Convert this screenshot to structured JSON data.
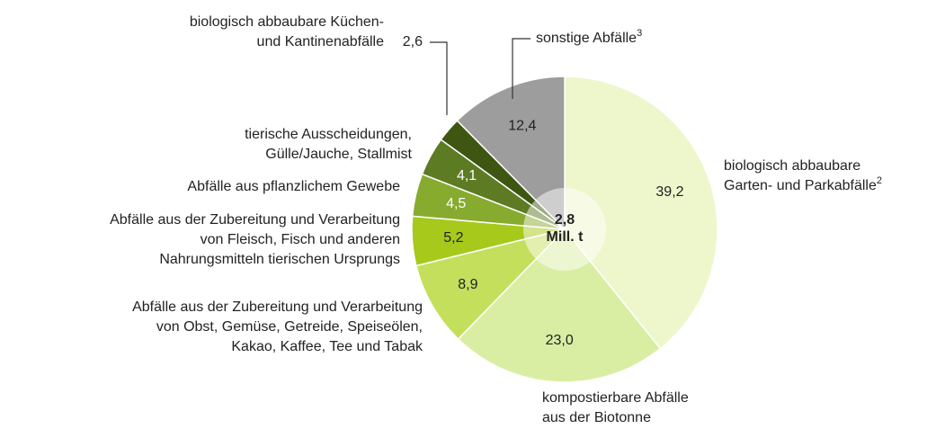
{
  "chart_data": {
    "type": "donut",
    "center_label": [
      "2,8",
      "Mill. t"
    ],
    "categories": [
      [
        "biologisch abbaubare",
        "Garten- und Parkabfälle"
      ],
      [
        "kompostierbare Abfälle",
        "aus der Biotonne"
      ],
      [
        "Abfälle aus der Zubereitung und Verarbeitung",
        "von Obst, Gemüse, Getreide, Speiseölen,",
        "Kakao, Kaffee, Tee und Tabak"
      ],
      [
        "Abfälle aus der Zubereitung und Verarbeitung",
        "von Fleisch, Fisch und anderen",
        "Nahrungsmitteln tierischen Ursprungs"
      ],
      [
        "Abfälle aus pflanzlichem Gewebe"
      ],
      [
        "tierische Ausscheidungen,",
        "Gülle/Jauche, Stallmist"
      ],
      [
        "biologisch abbaubare Küchen-",
        "und Kantinenabfälle"
      ],
      [
        "sonstige Abfälle"
      ]
    ],
    "footnotes": [
      "2",
      null,
      null,
      null,
      null,
      null,
      null,
      "3"
    ],
    "values": [
      39.2,
      23.0,
      8.9,
      5.2,
      4.5,
      4.1,
      2.6,
      12.4
    ],
    "value_labels": [
      "39,2",
      "23,0",
      "8,9",
      "5,2",
      "4,5",
      "4,1",
      "2,6",
      "12,4"
    ],
    "colors": [
      "#eef6cc",
      "#d9eea3",
      "#c4df5c",
      "#a7c91b",
      "#87ab2f",
      "#5d7b23",
      "#3e5612",
      "#9d9d9d"
    ]
  }
}
